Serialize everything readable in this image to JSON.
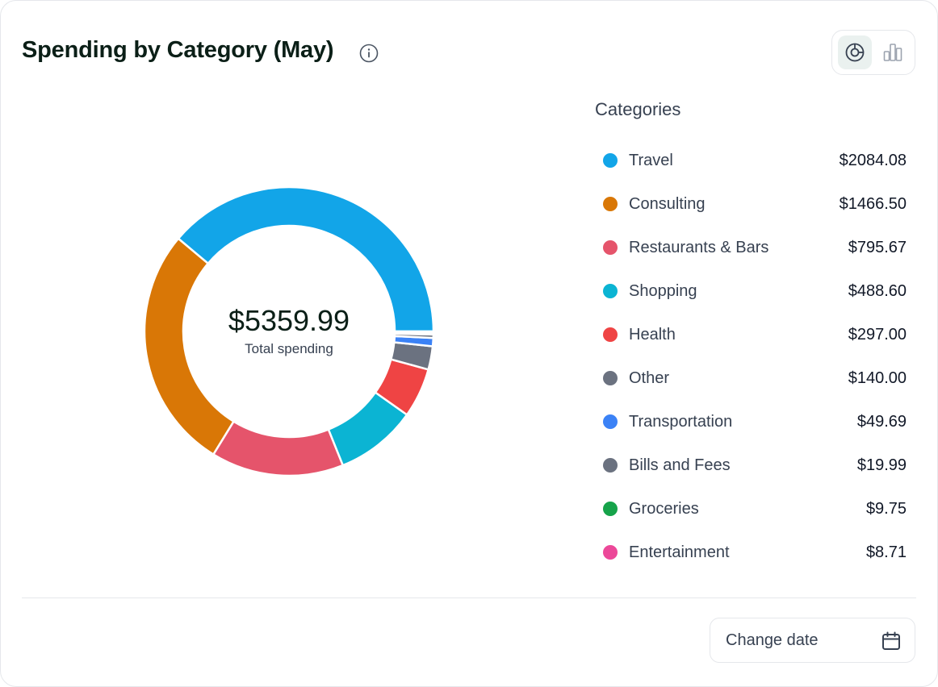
{
  "header": {
    "title": "Spending by Category (May)",
    "info_icon": "info-circle-icon",
    "view_toggle": {
      "options": [
        {
          "icon": "donut-chart-icon",
          "active": true
        },
        {
          "icon": "bar-chart-icon",
          "active": false
        }
      ]
    }
  },
  "chart_data": {
    "type": "pie",
    "style": "donut",
    "center_value": "$5359.99",
    "center_label": "Total spending",
    "slices": [
      {
        "label": "Travel",
        "value": 2084.08,
        "display": "$2084.08",
        "color": "#12a5e8"
      },
      {
        "label": "Consulting",
        "value": 1466.5,
        "display": "$1466.50",
        "color": "#d97706"
      },
      {
        "label": "Restaurants & Bars",
        "value": 795.67,
        "display": "$795.67",
        "color": "#e5546b"
      },
      {
        "label": "Shopping",
        "value": 488.6,
        "display": "$488.60",
        "color": "#0bb4d3"
      },
      {
        "label": "Health",
        "value": 297.0,
        "display": "$297.00",
        "color": "#ef4444"
      },
      {
        "label": "Other",
        "value": 140.0,
        "display": "$140.00",
        "color": "#6b7280"
      },
      {
        "label": "Transportation",
        "value": 49.69,
        "display": "$49.69",
        "color": "#3b82f6"
      },
      {
        "label": "Bills and Fees",
        "value": 19.99,
        "display": "$19.99",
        "color": "#6b7280"
      },
      {
        "label": "Groceries",
        "value": 9.75,
        "display": "$9.75",
        "color": "#16a34a"
      },
      {
        "label": "Entertainment",
        "value": 8.71,
        "display": "$8.71",
        "color": "#ec4899"
      }
    ]
  },
  "legend": {
    "title": "Categories"
  },
  "footer": {
    "change_date_label": "Change date",
    "calendar_icon": "calendar-icon"
  }
}
